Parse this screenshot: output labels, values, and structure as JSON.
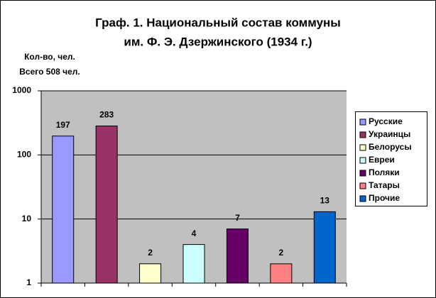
{
  "chart_data": {
    "type": "bar",
    "title": [
      "Граф. 1. Национальный состав коммуны",
      "им. Ф. Э. Дзержинского  (1934 г.)"
    ],
    "y_label": "Кол-во, чел.",
    "annotation": "Всего 508 чел.",
    "categories": [
      "Русские",
      "Украинцы",
      "Белорусы",
      "Евреи",
      "Поляки",
      "Татары",
      "Прочие"
    ],
    "values": [
      197,
      283,
      2,
      4,
      7,
      2,
      13
    ],
    "colors": [
      "#9999ff",
      "#993366",
      "#ffffcc",
      "#ccffff",
      "#660066",
      "#ff8080",
      "#0066cc"
    ],
    "ylim": [
      1,
      1000
    ],
    "yticks": [
      1,
      10,
      100,
      1000
    ],
    "log_scale": true,
    "grid": true,
    "legend": "right"
  }
}
